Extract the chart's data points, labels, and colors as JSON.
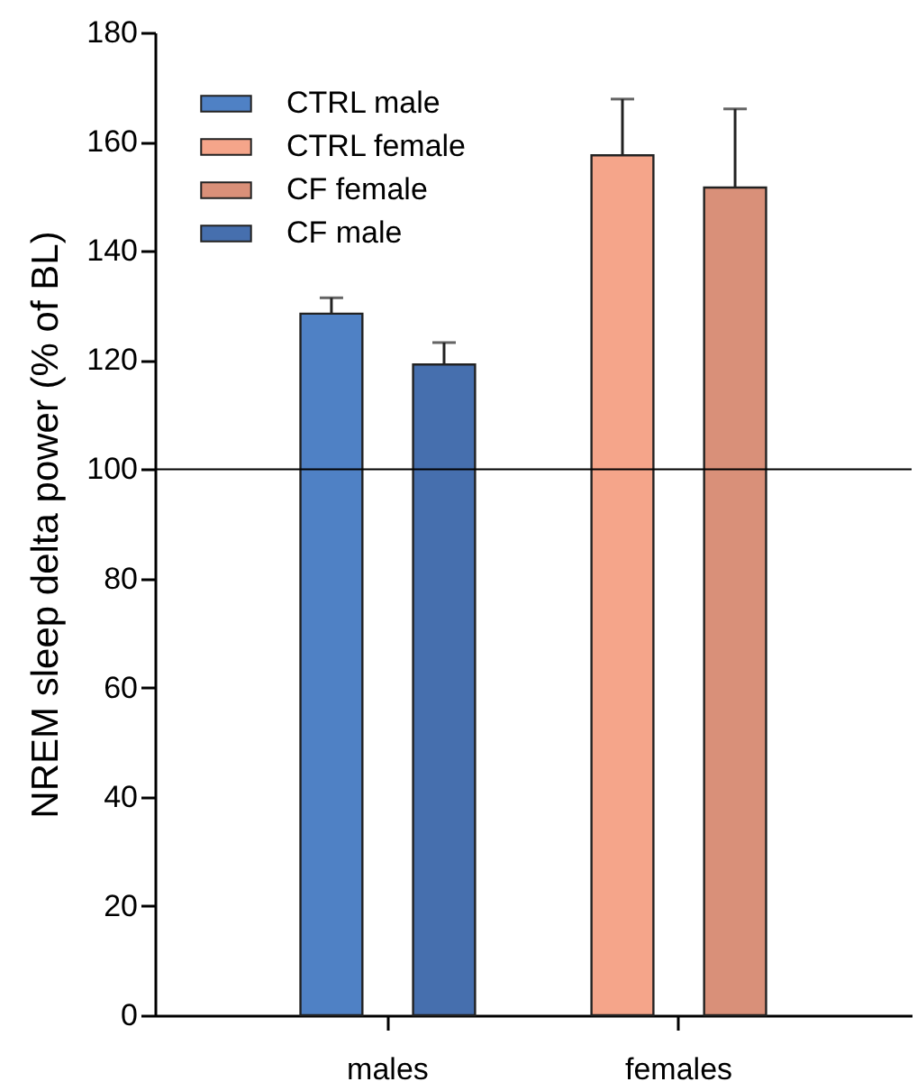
{
  "chart_data": {
    "type": "bar",
    "ylabel": "NREM sleep delta power (% of BL)",
    "categories": [
      "males",
      "females"
    ],
    "series": [
      {
        "name": "CTRL male",
        "color": "#4f81c5",
        "values": [
          128.5,
          null
        ],
        "errors": [
          [
            128.5,
            131.4
          ],
          null
        ]
      },
      {
        "name": "CTRL female",
        "color": "#f5a58a",
        "values": [
          null,
          157.5
        ],
        "errors": [
          null,
          [
            157.5,
            167.8
          ]
        ]
      },
      {
        "name": "CF female",
        "color": "#d99079",
        "values": [
          null,
          151.6
        ],
        "errors": [
          null,
          [
            151.6,
            166
          ]
        ]
      },
      {
        "name": "CF male",
        "color": "#466fae",
        "values": [
          119.2,
          null
        ],
        "errors": [
          [
            119.2,
            123.2
          ],
          null
        ]
      }
    ],
    "ylim": [
      0,
      180
    ],
    "yticks": [
      0,
      20,
      40,
      60,
      80,
      100,
      120,
      140,
      160,
      180
    ],
    "grid": false,
    "legend": "top left",
    "ref_lines": [
      {
        "axis": "y",
        "value": 100,
        "color": "#000000"
      }
    ]
  }
}
